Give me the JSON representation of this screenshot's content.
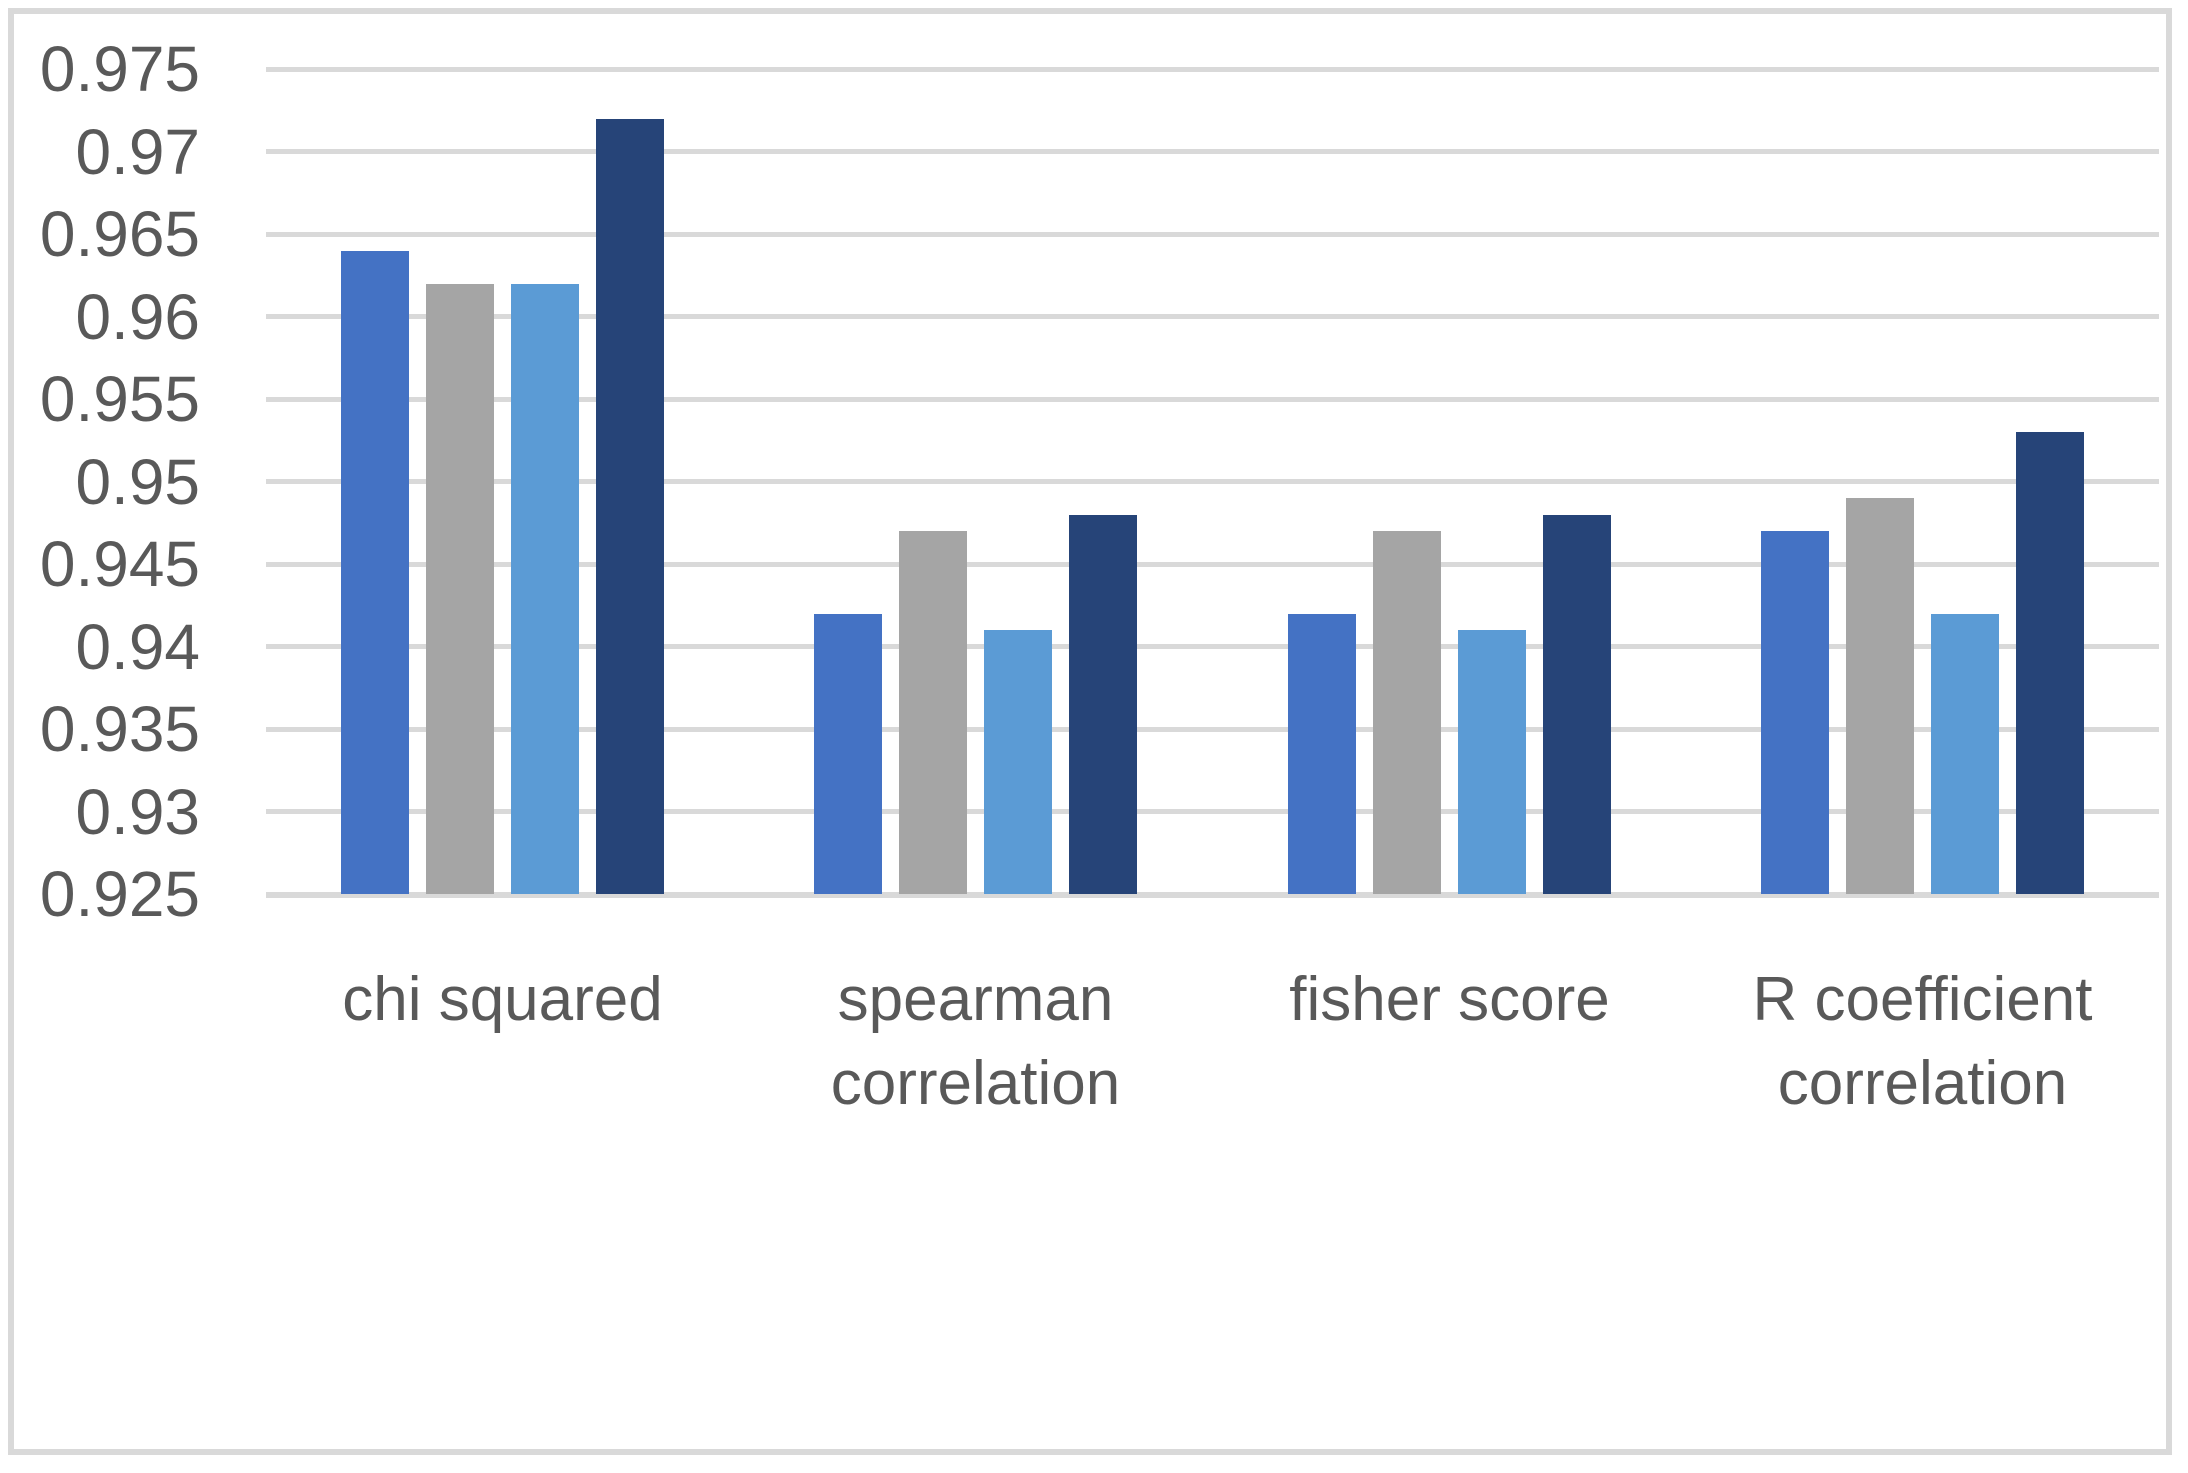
{
  "figure": {
    "background_color": "#FFFFFF",
    "border_color": "#D9D9D9",
    "gridline_color": "#D9D9D9",
    "axis_line_color": "#D9D9D9",
    "text_color": "#595959"
  },
  "chart_data": {
    "type": "bar",
    "categories": [
      "chi squared",
      "spearman correlation",
      "fisher score",
      "R coefficient correlation"
    ],
    "series": [
      {
        "color": "#4472C4",
        "values": [
          0.964,
          0.942,
          0.942,
          0.947
        ]
      },
      {
        "color": "#A5A5A5",
        "values": [
          0.962,
          0.947,
          0.947,
          0.949
        ]
      },
      {
        "color": "#5B9BD5",
        "values": [
          0.962,
          0.941,
          0.941,
          0.942
        ]
      },
      {
        "color": "#264478",
        "values": [
          0.972,
          0.948,
          0.948,
          0.953
        ]
      }
    ],
    "ylim": [
      0.925,
      0.975
    ],
    "ytick_interval": 0.005,
    "ytick_labels": [
      "0.975",
      "0.97",
      "0.965",
      "0.96",
      "0.955",
      "0.95",
      "0.945",
      "0.94",
      "0.935",
      "0.93",
      "0.925"
    ],
    "grid": true,
    "legend": false,
    "xlabel": "",
    "ylabel": ""
  }
}
